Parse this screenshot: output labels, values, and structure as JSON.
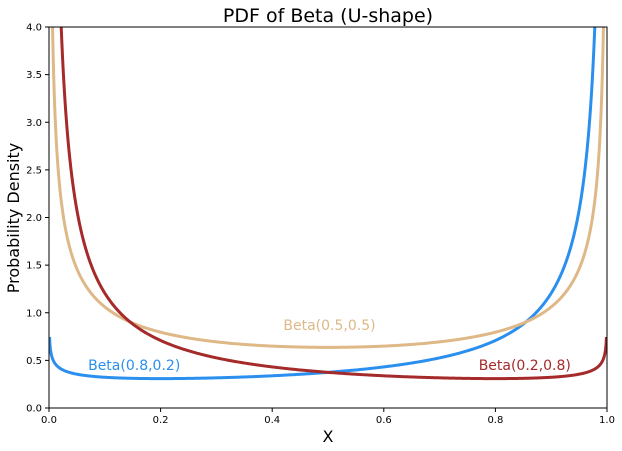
{
  "chart_data": {
    "type": "line",
    "title": "PDF of Beta (U-shape)",
    "xlabel": "X",
    "ylabel": "Probability Density",
    "xlim": [
      0.0,
      1.0
    ],
    "ylim": [
      0.0,
      4.0
    ],
    "x_ticks": [
      "0.0",
      "0.2",
      "0.4",
      "0.6",
      "0.8",
      "1.0"
    ],
    "y_ticks": [
      "0.0",
      "0.5",
      "1.0",
      "1.5",
      "2.0",
      "2.5",
      "3.0",
      "3.5",
      "4.0"
    ],
    "grid": false,
    "series": [
      {
        "name": "Beta(0.8,0.2)",
        "alpha": 0.8,
        "beta": 0.2,
        "color": "#2b8fef"
      },
      {
        "name": "Beta(0.5,0.5)",
        "alpha": 0.5,
        "beta": 0.5,
        "color": "#deb887"
      },
      {
        "name": "Beta(0.2,0.8)",
        "alpha": 0.2,
        "beta": 0.8,
        "color": "#a52a2a"
      }
    ],
    "annotations": [
      {
        "text": "Beta(0.8,0.2)",
        "x": 0.07,
        "y": 0.4,
        "color": "#2b8fef"
      },
      {
        "text": "Beta(0.5,0.5)",
        "x": 0.42,
        "y": 0.82,
        "color": "#deb887"
      },
      {
        "text": "Beta(0.2,0.8)",
        "x": 0.77,
        "y": 0.4,
        "color": "#a52a2a"
      }
    ]
  }
}
